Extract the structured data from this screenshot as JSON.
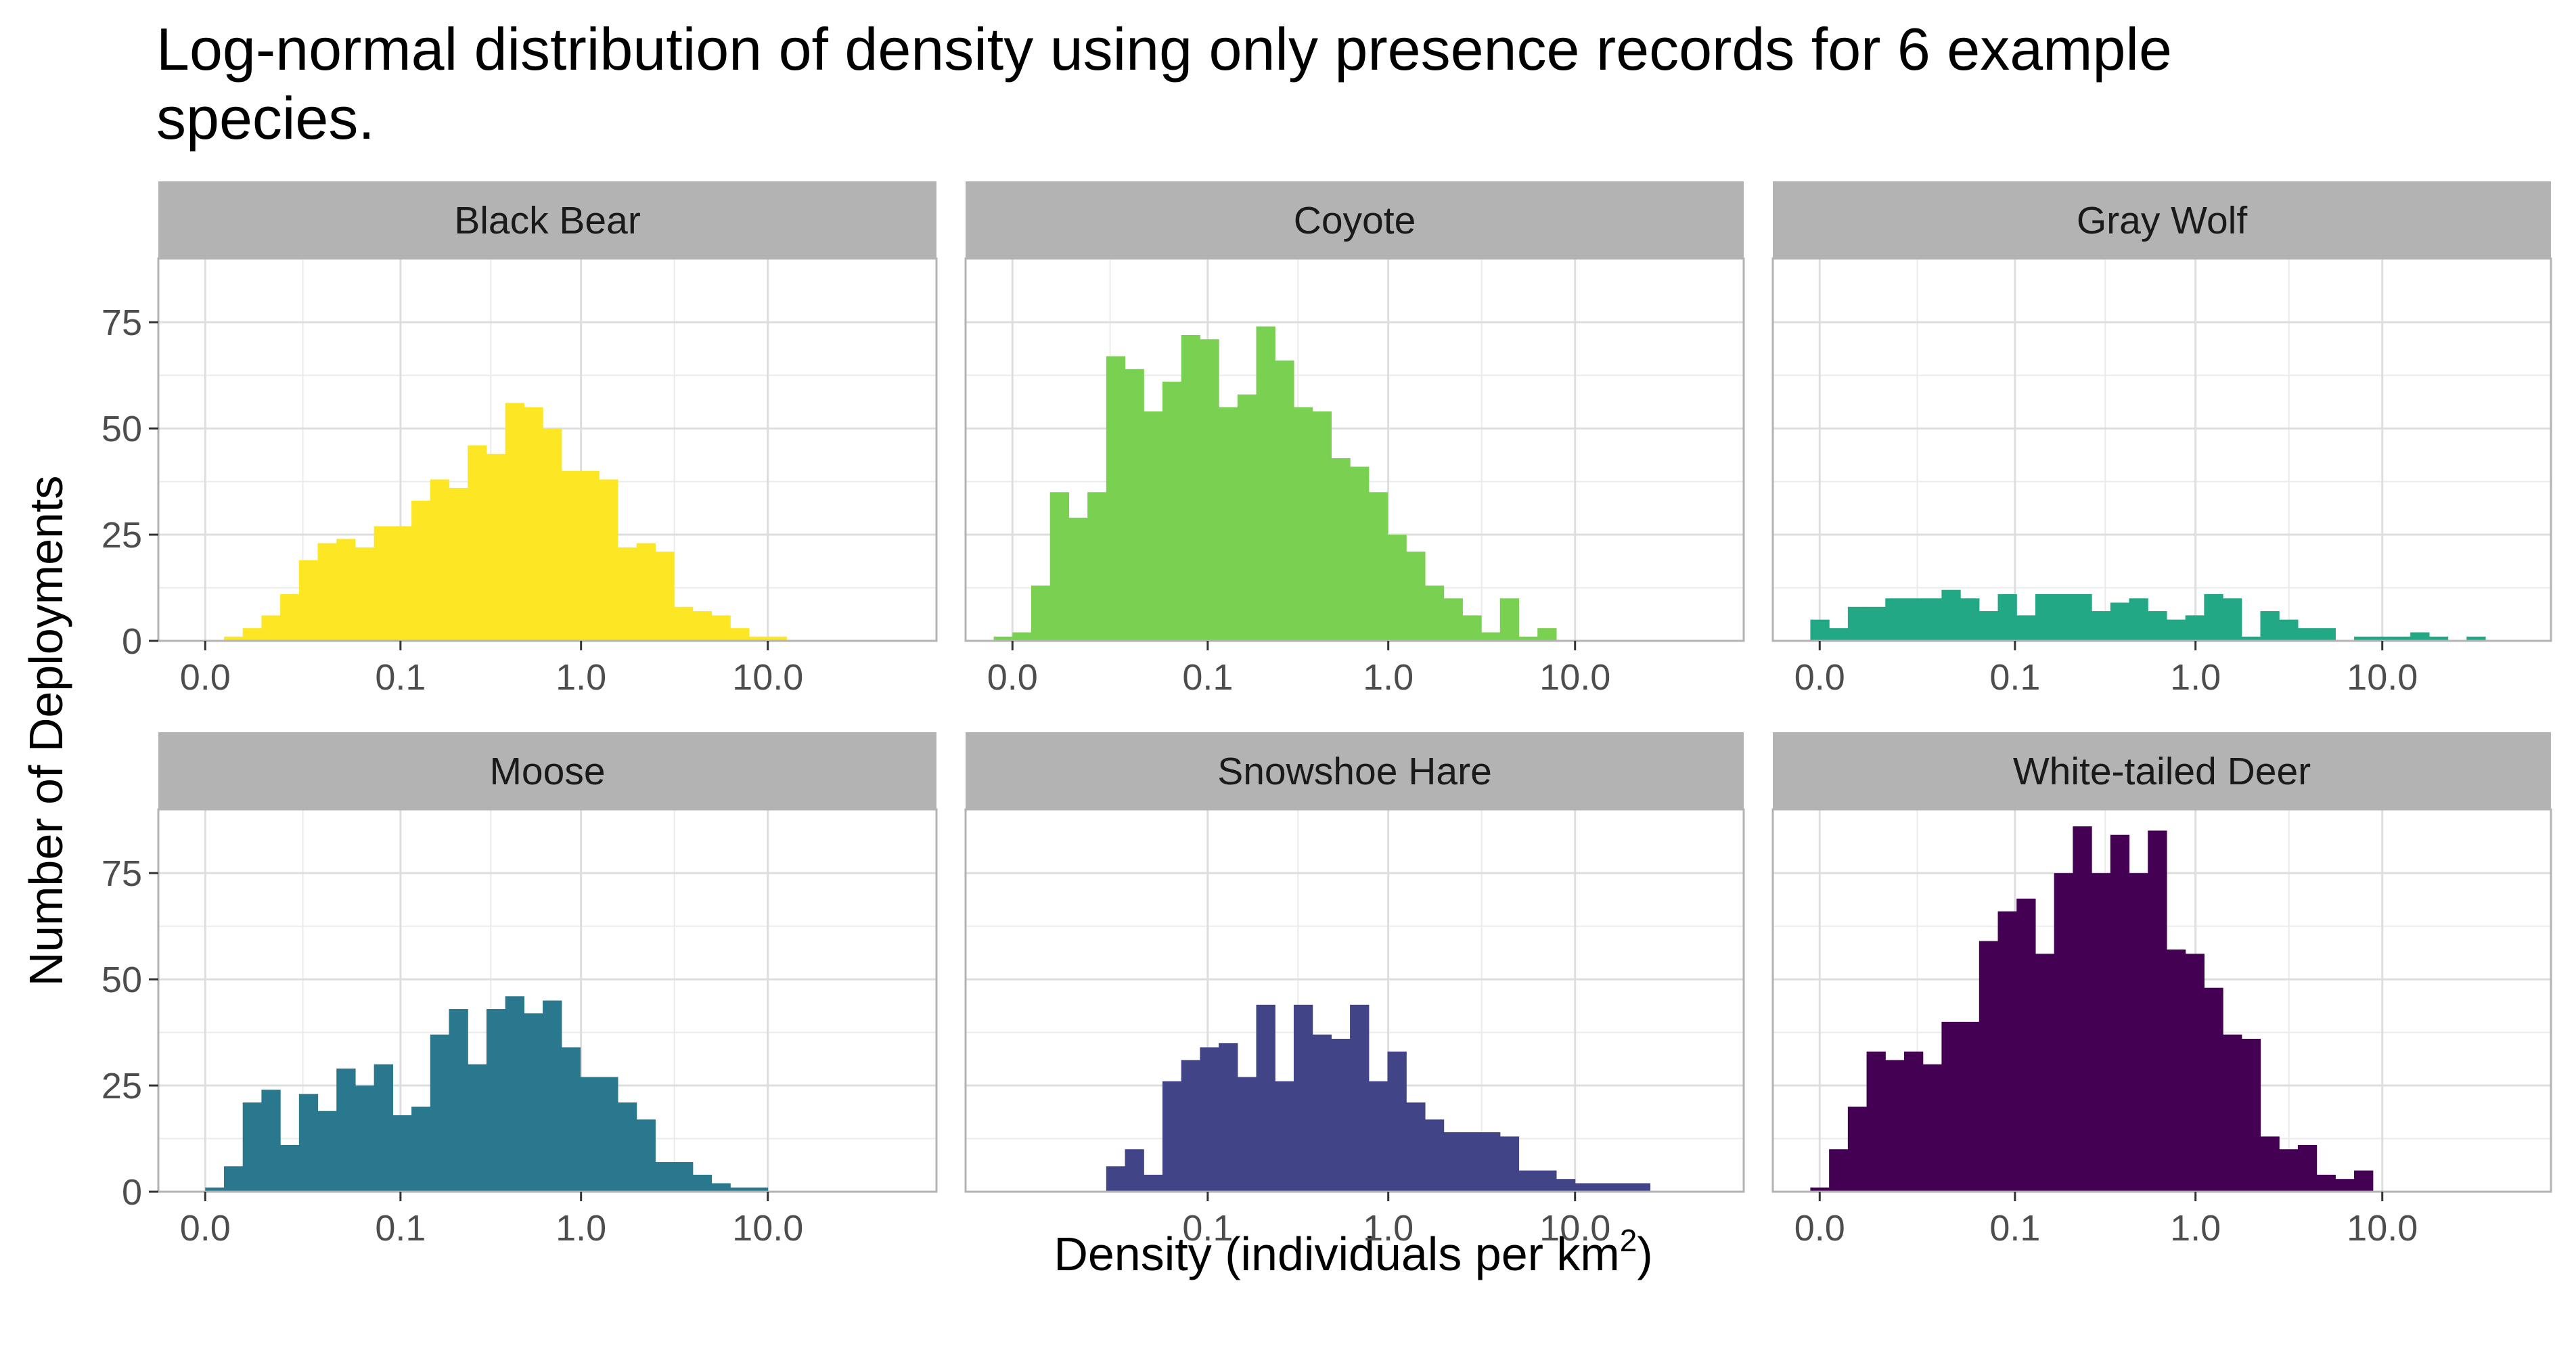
{
  "chart_data": {
    "type": "bar",
    "title_line1": "Log-normal distribution of density using only presence records for 6 example",
    "title_line2": "species.",
    "xlabel": "Density (individuals per km",
    "xlabel_sup": "2",
    "xlabel_close": ")",
    "ylabel": "Number of Deployments",
    "y_scale": "linear",
    "ylim": [
      0,
      90
    ],
    "y_ticks": [
      0,
      25,
      50,
      75
    ],
    "y_tick_labels": [
      "0",
      "25",
      "50",
      "75"
    ],
    "x_scale": "log10(x+0.01)",
    "x_ticks": [
      0.0,
      0.1,
      1.0,
      10.0
    ],
    "x_tick_labels": [
      "0.0",
      "0.1",
      "1.0",
      "10.0"
    ],
    "grid": true,
    "legend": "none",
    "bin_width_log10": 0.1,
    "panels": [
      {
        "name": "Black Bear",
        "color": "#FDE725",
        "x_tick_labels": [
          "0.0",
          "0.1",
          "1.0",
          "10.0"
        ],
        "first_bin_log10": -1.9,
        "counts": [
          1,
          3,
          6,
          11,
          19,
          23,
          24,
          22,
          27,
          27,
          33,
          38,
          36,
          46,
          44,
          56,
          55,
          50,
          40,
          40,
          38,
          22,
          23,
          21,
          8,
          7,
          6,
          3,
          1,
          1
        ]
      },
      {
        "name": "Coyote",
        "color": "#7AD151",
        "x_tick_labels": [
          "0.0",
          "0.1",
          "1.0",
          "10.0"
        ],
        "first_bin_log10": -2.1,
        "counts": [
          1,
          2,
          13,
          35,
          29,
          35,
          67,
          64,
          54,
          61,
          72,
          71,
          55,
          58,
          74,
          66,
          55,
          54,
          43,
          41,
          35,
          25,
          21,
          13,
          10,
          6,
          2,
          10,
          1,
          3
        ]
      },
      {
        "name": "Gray Wolf",
        "color": "#22A884",
        "x_tick_labels": [
          "0.0",
          "0.1",
          "1.0",
          "10.0"
        ],
        "first_bin_log10": -2.05,
        "counts": [
          5,
          3,
          8,
          8,
          10,
          10,
          10,
          12,
          10,
          7,
          11,
          6,
          11,
          11,
          11,
          7,
          9,
          10,
          7,
          5,
          6,
          11,
          10,
          1,
          7,
          5,
          3,
          3,
          0,
          1,
          1,
          1,
          2,
          1,
          0,
          1
        ]
      },
      {
        "name": "Moose",
        "color": "#2A788E",
        "x_tick_labels": [
          "0.0",
          "0.1",
          "1.0",
          "10.0"
        ],
        "first_bin_log10": -2.0,
        "counts": [
          1,
          6,
          21,
          24,
          11,
          23,
          19,
          29,
          25,
          30,
          18,
          20,
          37,
          43,
          30,
          43,
          46,
          42,
          45,
          34,
          27,
          27,
          21,
          17,
          7,
          7,
          4,
          2,
          1,
          1
        ]
      },
      {
        "name": "Snowshoe Hare",
        "color": "#414487",
        "x_tick_labels": [
          "0.1",
          "1.0",
          "10.0"
        ],
        "first_bin_log10": -1.5,
        "counts": [
          6,
          10,
          4,
          26,
          31,
          34,
          35,
          27,
          44,
          26,
          44,
          37,
          36,
          44,
          26,
          33,
          21,
          17,
          14,
          14,
          14,
          13,
          5,
          5,
          3,
          2,
          2,
          2,
          2
        ]
      },
      {
        "name": "White-tailed Deer",
        "color": "#440154",
        "x_tick_labels": [
          "0.0",
          "0.1",
          "1.0",
          "10.0"
        ],
        "first_bin_log10": -2.05,
        "counts": [
          1,
          10,
          20,
          33,
          31,
          33,
          30,
          40,
          40,
          59,
          66,
          69,
          56,
          75,
          86,
          75,
          84,
          75,
          85,
          57,
          56,
          48,
          37,
          36,
          13,
          10,
          11,
          4,
          3,
          5
        ]
      }
    ]
  }
}
